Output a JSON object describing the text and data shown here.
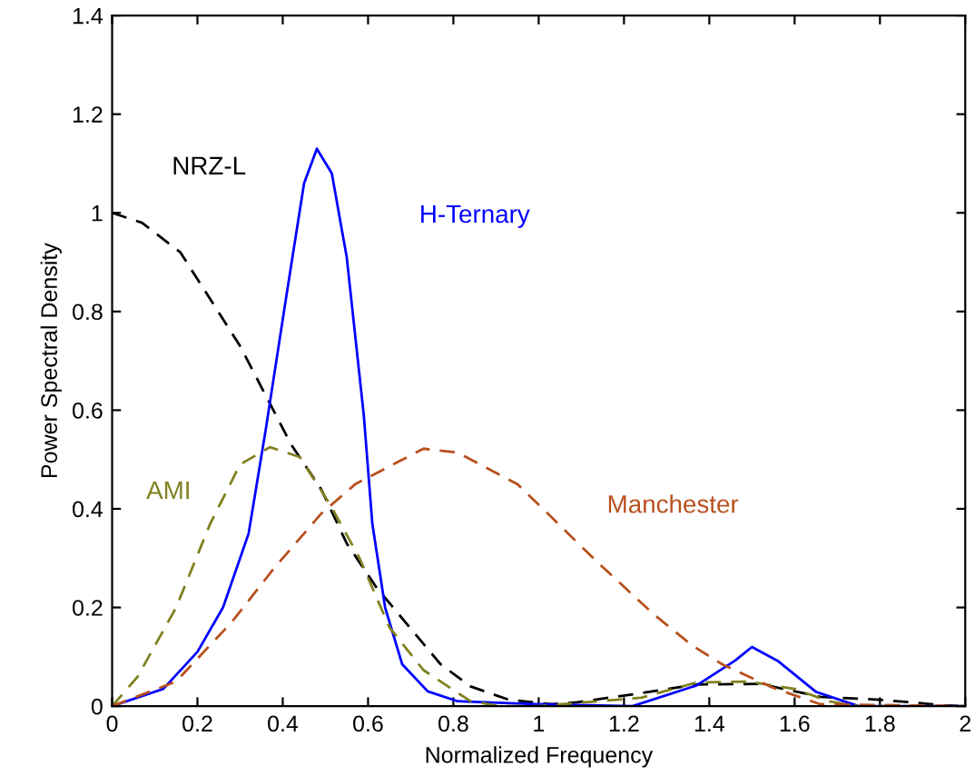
{
  "chart_data": {
    "type": "line",
    "xlabel": "Normalized Frequency",
    "ylabel": "Power Spectral Density",
    "xlim": [
      0,
      2
    ],
    "ylim": [
      0,
      1.4
    ],
    "xticks": [
      0,
      0.2,
      0.4,
      0.6,
      0.8,
      1,
      1.2,
      1.4,
      1.6,
      1.8,
      2
    ],
    "yticks": [
      0,
      0.2,
      0.4,
      0.6,
      0.8,
      1,
      1.2,
      1.4
    ],
    "grid": false,
    "legend": false,
    "marker": "none",
    "series": [
      {
        "name": "NRZ-L",
        "color": "#000000",
        "line_style": "dashed",
        "x": [
          0,
          0.07,
          0.16,
          0.3,
          0.42,
          0.49,
          0.55,
          0.62,
          0.77,
          0.84,
          0.93,
          1.03,
          1.09,
          1.23,
          1.37,
          1.52,
          1.66,
          1.8,
          1.95,
          2
        ],
        "values": [
          1.0,
          0.98,
          0.92,
          0.73,
          0.53,
          0.44,
          0.33,
          0.24,
          0.085,
          0.04,
          0.013,
          0.004,
          0.008,
          0.025,
          0.044,
          0.045,
          0.019,
          0.013,
          0.002,
          0
        ]
      },
      {
        "name": "H-Ternary",
        "color": "#0000ff",
        "line_style": "solid",
        "x": [
          0,
          0.12,
          0.2,
          0.26,
          0.32,
          0.36,
          0.41,
          0.45,
          0.48,
          0.515,
          0.55,
          0.59,
          0.61,
          0.64,
          0.68,
          0.74,
          0.81,
          0.99,
          1.22,
          1.37,
          1.46,
          1.5,
          1.56,
          1.65,
          1.75,
          2
        ],
        "values": [
          0,
          0.035,
          0.11,
          0.2,
          0.35,
          0.56,
          0.84,
          1.06,
          1.13,
          1.08,
          0.91,
          0.59,
          0.37,
          0.2,
          0.085,
          0.03,
          0.01,
          0.004,
          0,
          0.042,
          0.092,
          0.12,
          0.092,
          0.029,
          0,
          0
        ]
      },
      {
        "name": "AMI",
        "color": "#808020",
        "line_style": "dashed",
        "x": [
          0,
          0.06,
          0.15,
          0.23,
          0.3,
          0.37,
          0.44,
          0.51,
          0.58,
          0.65,
          0.73,
          0.84,
          0.91,
          1.0,
          1.24,
          1.37,
          1.49,
          1.6,
          1.68,
          1.75,
          2
        ],
        "values": [
          0,
          0.06,
          0.2,
          0.37,
          0.49,
          0.525,
          0.505,
          0.41,
          0.3,
          0.16,
          0.073,
          0.01,
          0,
          0,
          0.017,
          0.048,
          0.05,
          0.035,
          0.01,
          0,
          0
        ]
      },
      {
        "name": "Manchester",
        "color": "#b8501e",
        "line_style": "dashed",
        "x": [
          0,
          0.15,
          0.28,
          0.38,
          0.49,
          0.57,
          0.73,
          0.81,
          0.95,
          1.01,
          1.14,
          1.27,
          1.36,
          1.43,
          1.55,
          1.66,
          2
        ],
        "values": [
          0,
          0.05,
          0.17,
          0.28,
          0.39,
          0.45,
          0.522,
          0.514,
          0.45,
          0.4,
          0.29,
          0.186,
          0.123,
          0.085,
          0.037,
          0.004,
          0
        ]
      }
    ]
  }
}
